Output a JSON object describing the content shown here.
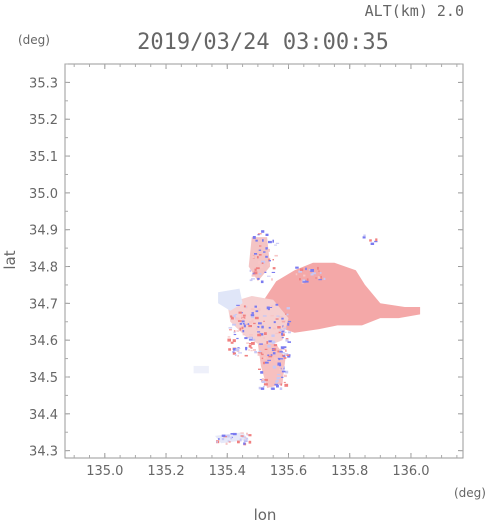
{
  "chart_data": {
    "type": "heatmap",
    "title": "2019/03/24 03:00:35",
    "subtitle": "ALT(km) 2.0",
    "xlabel": "lon",
    "ylabel": "lat",
    "x_unit": "(deg)",
    "y_unit": "(deg)",
    "xlim": [
      134.87,
      136.17
    ],
    "ylim": [
      34.28,
      35.35
    ],
    "x_ticks": [
      135.0,
      135.2,
      135.4,
      135.6,
      135.8,
      136.0
    ],
    "x_tick_labels": [
      "135.0",
      "135.2",
      "135.4",
      "135.6",
      "135.8",
      "136.0"
    ],
    "y_ticks": [
      34.3,
      34.4,
      34.5,
      34.6,
      34.7,
      34.8,
      34.9,
      35.0,
      35.1,
      35.2,
      35.3
    ],
    "y_tick_labels": [
      "34.3",
      "34.4",
      "34.5",
      "34.6",
      "34.7",
      "34.8",
      "34.9",
      "35.0",
      "35.1",
      "35.2",
      "35.3"
    ],
    "grid": false,
    "colors": {
      "positive": "#f08080",
      "negative": "#7a7af0",
      "light": "#f7c6c6",
      "neutral": "#e8e8f4"
    },
    "regions": [
      {
        "kind": "main-echo",
        "color": "#f4a8a8",
        "outline": [
          [
            135.52,
            34.71
          ],
          [
            135.56,
            34.76
          ],
          [
            135.62,
            34.79
          ],
          [
            135.68,
            34.81
          ],
          [
            135.75,
            34.81
          ],
          [
            135.82,
            34.79
          ],
          [
            135.85,
            34.75
          ],
          [
            135.9,
            34.7
          ],
          [
            135.98,
            34.69
          ],
          [
            136.03,
            34.69
          ],
          [
            136.03,
            34.67
          ],
          [
            135.96,
            34.66
          ],
          [
            135.9,
            34.66
          ],
          [
            135.84,
            34.64
          ],
          [
            135.76,
            34.64
          ],
          [
            135.7,
            34.63
          ],
          [
            135.62,
            34.62
          ],
          [
            135.55,
            34.64
          ],
          [
            135.5,
            34.67
          ]
        ]
      },
      {
        "kind": "mixed-echo",
        "color": "#f6d0d0",
        "outline": [
          [
            135.4,
            34.7
          ],
          [
            135.48,
            34.72
          ],
          [
            135.55,
            34.71
          ],
          [
            135.6,
            34.66
          ],
          [
            135.58,
            34.6
          ],
          [
            135.52,
            34.58
          ],
          [
            135.46,
            34.61
          ],
          [
            135.41,
            34.65
          ]
        ]
      },
      {
        "kind": "south-echo",
        "color": "#f7c0c0",
        "outline": [
          [
            135.5,
            34.59
          ],
          [
            135.56,
            34.59
          ],
          [
            135.59,
            34.55
          ],
          [
            135.58,
            34.48
          ],
          [
            135.53,
            34.47
          ],
          [
            135.51,
            34.53
          ]
        ]
      },
      {
        "kind": "west-cell",
        "color": "#e0e6f8",
        "outline": [
          [
            135.37,
            34.73
          ],
          [
            135.44,
            34.74
          ],
          [
            135.45,
            34.7
          ],
          [
            135.41,
            34.68
          ],
          [
            135.37,
            34.7
          ]
        ]
      },
      {
        "kind": "southwest-band",
        "color": "#e6e8f8",
        "outline": [
          [
            135.36,
            34.34
          ],
          [
            135.45,
            34.35
          ],
          [
            135.47,
            34.33
          ],
          [
            135.38,
            34.32
          ]
        ]
      },
      {
        "kind": "north-fragments",
        "color": "#f4c4c4",
        "outline": [
          [
            135.48,
            34.88
          ],
          [
            135.53,
            34.88
          ],
          [
            135.54,
            34.8
          ],
          [
            135.5,
            34.76
          ],
          [
            135.47,
            34.8
          ]
        ]
      },
      {
        "kind": "west-speck",
        "color": "#eef0fa",
        "outline": [
          [
            135.29,
            34.53
          ],
          [
            135.34,
            34.53
          ],
          [
            135.34,
            34.51
          ],
          [
            135.29,
            34.51
          ]
        ]
      }
    ]
  }
}
